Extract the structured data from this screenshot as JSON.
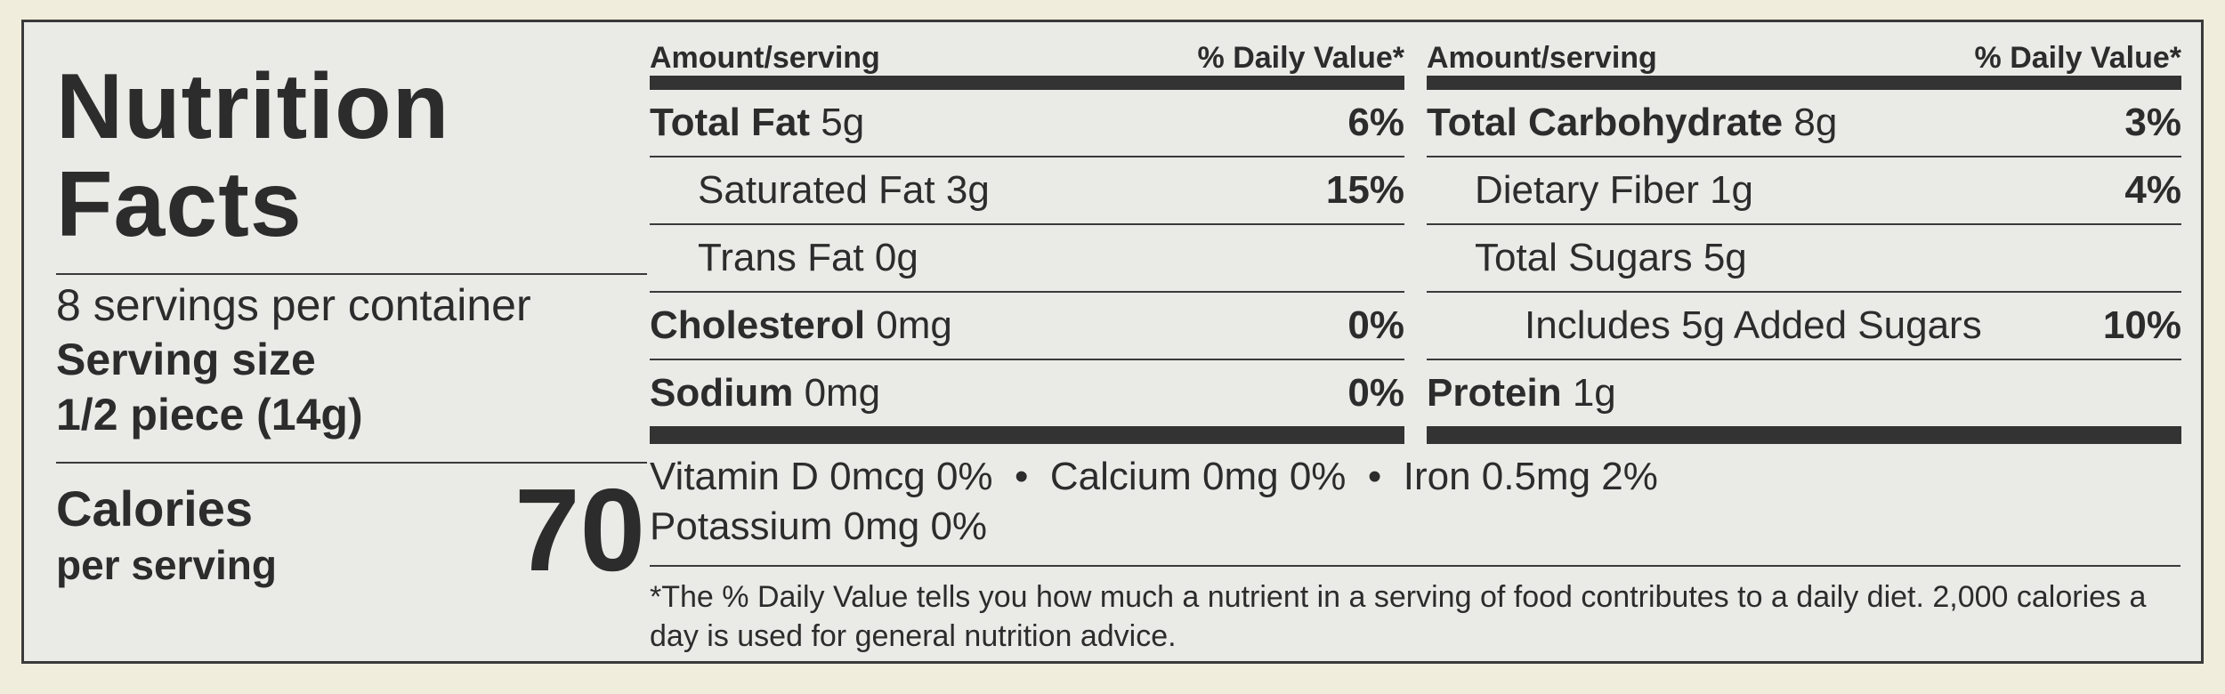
{
  "title_line1": "Nutrition",
  "title_line2": "Facts",
  "servings_per_container": "8 servings per container",
  "serving_size_label": "Serving size",
  "serving_size_value": "1/2 piece (14g)",
  "calories_label": "Calories",
  "calories_sub": "per serving",
  "calories_value": "70",
  "header_left": "Amount/serving",
  "header_right": "% Daily Value*",
  "left_rows": [
    {
      "name": "Total Fat",
      "amount": "5g",
      "dv": "6%"
    },
    {
      "name": "Saturated Fat",
      "amount": "3g",
      "dv": "15%"
    },
    {
      "name": "Trans Fat",
      "amount": "0g",
      "dv": ""
    },
    {
      "name": "Cholesterol",
      "amount": "0mg",
      "dv": "0%"
    },
    {
      "name": "Sodium",
      "amount": "0mg",
      "dv": "0%"
    }
  ],
  "right_rows": [
    {
      "name": "Total Carbohydrate",
      "amount": "8g",
      "dv": "3%"
    },
    {
      "name": "Dietary Fiber",
      "amount": "1g",
      "dv": "4%"
    },
    {
      "name": "Total Sugars",
      "amount": "5g",
      "dv": ""
    },
    {
      "name": "Includes 5g Added Sugars",
      "amount": "",
      "dv": "10%"
    },
    {
      "name": "Protein",
      "amount": "1g",
      "dv": ""
    }
  ],
  "vitamins_line1": "Vitamin D 0mcg 0%  •  Calcium 0mg 0%  •  Iron 0.5mg 2%",
  "vitamins_line2": "Potassium 0mg 0%",
  "footnote": "*The % Daily Value tells you how much a nutrient in a serving of food contributes to a daily diet. 2,000 calories a day is used for general nutrition advice."
}
